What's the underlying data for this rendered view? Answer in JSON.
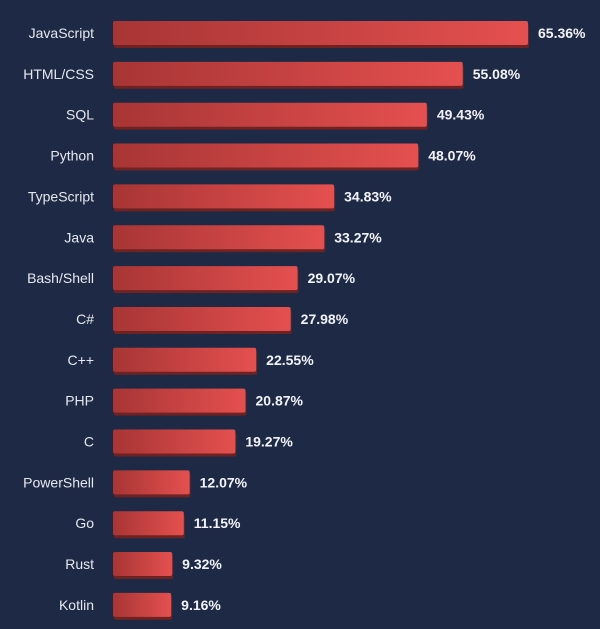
{
  "chart_data": {
    "type": "bar",
    "orientation": "horizontal",
    "title": "",
    "xlabel": "",
    "ylabel": "",
    "xlim": [
      0,
      65.36
    ],
    "grid": false,
    "categories": [
      "JavaScript",
      "HTML/CSS",
      "SQL",
      "Python",
      "TypeScript",
      "Java",
      "Bash/Shell",
      "C#",
      "C++",
      "PHP",
      "C",
      "PowerShell",
      "Go",
      "Rust",
      "Kotlin"
    ],
    "values": [
      65.36,
      55.08,
      49.43,
      48.07,
      34.83,
      33.27,
      29.07,
      27.98,
      22.55,
      20.87,
      19.27,
      12.07,
      11.15,
      9.32,
      9.16
    ],
    "value_labels": [
      "65.36%",
      "55.08%",
      "49.43%",
      "48.07%",
      "34.83%",
      "33.27%",
      "29.07%",
      "27.98%",
      "22.55%",
      "20.87%",
      "19.27%",
      "12.07%",
      "11.15%",
      "9.32%",
      "9.16%"
    ],
    "colors": {
      "background": "#1e2a45",
      "bar_left": "#a83535",
      "bar_right": "#e4504f",
      "bar_shadow": "#6e2222",
      "label_text": "#e6e8ee",
      "value_text": "#f2f3f6"
    }
  }
}
